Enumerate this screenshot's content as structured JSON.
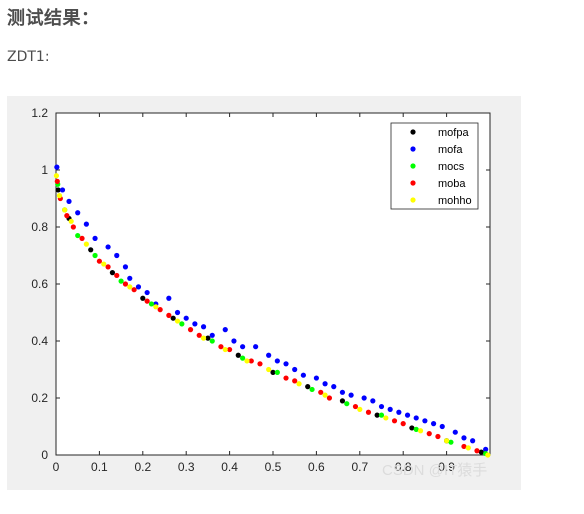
{
  "page": {
    "heading": "测试结果：",
    "subheading": "ZDT1:",
    "watermark": "CSDN @IT猿手"
  },
  "chart_data": {
    "type": "scatter",
    "title": "",
    "xlabel": "",
    "ylabel": "",
    "xlim": [
      0,
      1
    ],
    "ylim": [
      0,
      1.2
    ],
    "x_ticks": [
      "0",
      "0.1",
      "0.2",
      "0.3",
      "0.4",
      "0.5",
      "0.6",
      "0.7",
      "0.8",
      "0.9"
    ],
    "y_ticks": [
      "0",
      "0.2",
      "0.4",
      "0.6",
      "0.8",
      "1",
      "1.2"
    ],
    "grid": false,
    "legend_position": "top-right",
    "series": [
      {
        "name": "mofpa",
        "color": "#000000",
        "points": [
          [
            0.005,
            0.93
          ],
          [
            0.03,
            0.83
          ],
          [
            0.08,
            0.72
          ],
          [
            0.13,
            0.64
          ],
          [
            0.2,
            0.55
          ],
          [
            0.27,
            0.48
          ],
          [
            0.35,
            0.41
          ],
          [
            0.42,
            0.35
          ],
          [
            0.5,
            0.29
          ],
          [
            0.58,
            0.24
          ],
          [
            0.66,
            0.19
          ],
          [
            0.74,
            0.14
          ],
          [
            0.82,
            0.095
          ],
          [
            0.9,
            0.05
          ],
          [
            0.98,
            0.01
          ]
        ]
      },
      {
        "name": "mofa",
        "color": "#0000ff",
        "points": [
          [
            0.002,
            1.01
          ],
          [
            0.015,
            0.93
          ],
          [
            0.03,
            0.89
          ],
          [
            0.05,
            0.85
          ],
          [
            0.07,
            0.81
          ],
          [
            0.09,
            0.76
          ],
          [
            0.12,
            0.73
          ],
          [
            0.14,
            0.7
          ],
          [
            0.16,
            0.66
          ],
          [
            0.17,
            0.62
          ],
          [
            0.19,
            0.59
          ],
          [
            0.21,
            0.57
          ],
          [
            0.23,
            0.53
          ],
          [
            0.26,
            0.55
          ],
          [
            0.28,
            0.5
          ],
          [
            0.3,
            0.48
          ],
          [
            0.32,
            0.46
          ],
          [
            0.34,
            0.45
          ],
          [
            0.36,
            0.42
          ],
          [
            0.39,
            0.44
          ],
          [
            0.41,
            0.4
          ],
          [
            0.43,
            0.38
          ],
          [
            0.46,
            0.38
          ],
          [
            0.49,
            0.35
          ],
          [
            0.51,
            0.33
          ],
          [
            0.53,
            0.32
          ],
          [
            0.55,
            0.3
          ],
          [
            0.57,
            0.28
          ],
          [
            0.6,
            0.27
          ],
          [
            0.62,
            0.25
          ],
          [
            0.64,
            0.24
          ],
          [
            0.66,
            0.22
          ],
          [
            0.68,
            0.21
          ],
          [
            0.71,
            0.2
          ],
          [
            0.73,
            0.19
          ],
          [
            0.75,
            0.17
          ],
          [
            0.77,
            0.16
          ],
          [
            0.79,
            0.15
          ],
          [
            0.81,
            0.14
          ],
          [
            0.83,
            0.13
          ],
          [
            0.85,
            0.12
          ],
          [
            0.87,
            0.11
          ],
          [
            0.89,
            0.1
          ],
          [
            0.92,
            0.08
          ],
          [
            0.94,
            0.06
          ],
          [
            0.96,
            0.05
          ],
          [
            0.99,
            0.02
          ]
        ]
      },
      {
        "name": "mocs",
        "color": "#00ff00",
        "points": [
          [
            0.004,
            0.95
          ],
          [
            0.02,
            0.86
          ],
          [
            0.05,
            0.77
          ],
          [
            0.09,
            0.7
          ],
          [
            0.15,
            0.61
          ],
          [
            0.22,
            0.53
          ],
          [
            0.29,
            0.46
          ],
          [
            0.36,
            0.4
          ],
          [
            0.43,
            0.34
          ],
          [
            0.51,
            0.29
          ],
          [
            0.59,
            0.23
          ],
          [
            0.67,
            0.18
          ],
          [
            0.75,
            0.14
          ],
          [
            0.83,
            0.09
          ],
          [
            0.91,
            0.045
          ],
          [
            0.99,
            0.005
          ]
        ]
      },
      {
        "name": "moba",
        "color": "#ff0000",
        "points": [
          [
            0.003,
            0.96
          ],
          [
            0.01,
            0.9
          ],
          [
            0.025,
            0.84
          ],
          [
            0.04,
            0.8
          ],
          [
            0.06,
            0.76
          ],
          [
            0.1,
            0.68
          ],
          [
            0.12,
            0.66
          ],
          [
            0.14,
            0.63
          ],
          [
            0.16,
            0.6
          ],
          [
            0.18,
            0.58
          ],
          [
            0.21,
            0.54
          ],
          [
            0.24,
            0.51
          ],
          [
            0.26,
            0.49
          ],
          [
            0.31,
            0.44
          ],
          [
            0.33,
            0.42
          ],
          [
            0.38,
            0.38
          ],
          [
            0.4,
            0.37
          ],
          [
            0.45,
            0.33
          ],
          [
            0.47,
            0.32
          ],
          [
            0.53,
            0.27
          ],
          [
            0.55,
            0.26
          ],
          [
            0.61,
            0.22
          ],
          [
            0.63,
            0.2
          ],
          [
            0.69,
            0.17
          ],
          [
            0.72,
            0.15
          ],
          [
            0.78,
            0.12
          ],
          [
            0.8,
            0.11
          ],
          [
            0.86,
            0.075
          ],
          [
            0.88,
            0.065
          ],
          [
            0.94,
            0.03
          ],
          [
            0.97,
            0.015
          ]
        ]
      },
      {
        "name": "mohho",
        "color": "#ffff00",
        "points": [
          [
            0.001,
            0.98
          ],
          [
            0.008,
            0.91
          ],
          [
            0.02,
            0.86
          ],
          [
            0.035,
            0.82
          ],
          [
            0.07,
            0.74
          ],
          [
            0.11,
            0.67
          ],
          [
            0.17,
            0.59
          ],
          [
            0.23,
            0.52
          ],
          [
            0.28,
            0.47
          ],
          [
            0.34,
            0.41
          ],
          [
            0.39,
            0.37
          ],
          [
            0.44,
            0.33
          ],
          [
            0.49,
            0.3
          ],
          [
            0.56,
            0.25
          ],
          [
            0.62,
            0.21
          ],
          [
            0.7,
            0.16
          ],
          [
            0.76,
            0.13
          ],
          [
            0.84,
            0.085
          ],
          [
            0.9,
            0.05
          ],
          [
            0.95,
            0.025
          ],
          [
            0.995,
            0.0
          ]
        ]
      }
    ]
  }
}
